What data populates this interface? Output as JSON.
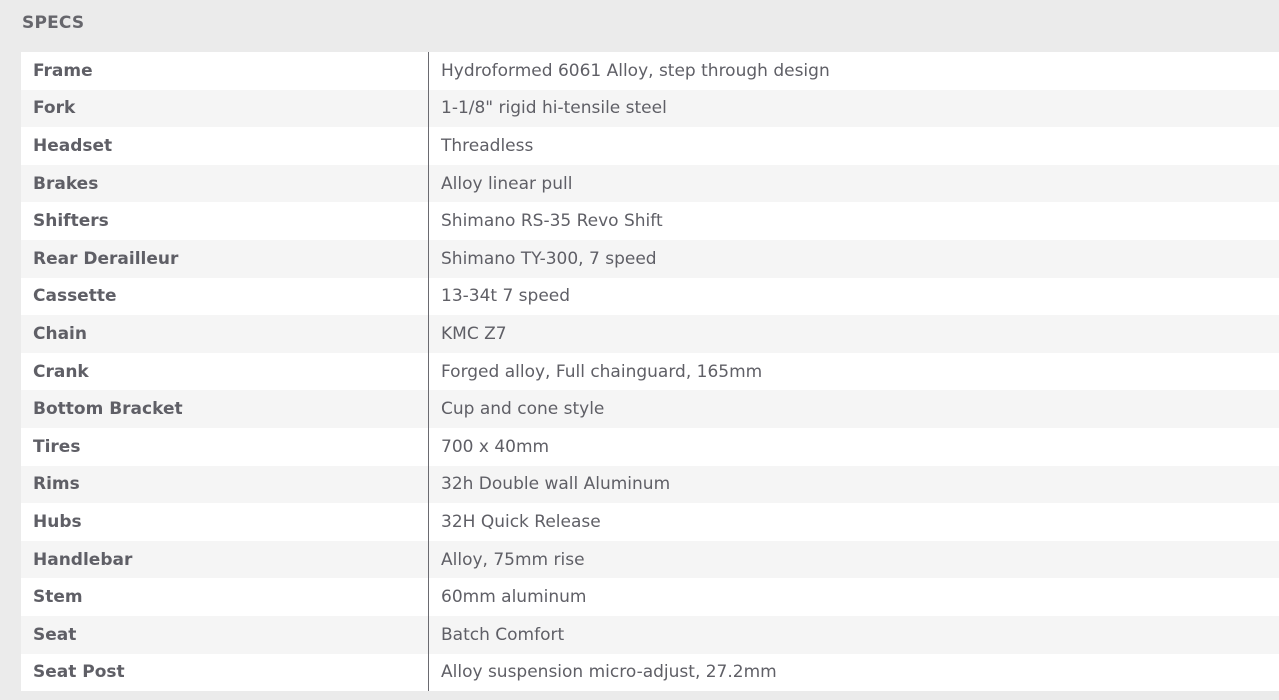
{
  "section_title": "SPECS",
  "specs": [
    {
      "label": "Frame",
      "value": "Hydroformed 6061 Alloy, step through design"
    },
    {
      "label": "Fork",
      "value": "1-1/8\" rigid hi-tensile steel"
    },
    {
      "label": "Headset",
      "value": "Threadless"
    },
    {
      "label": "Brakes",
      "value": "Alloy linear pull"
    },
    {
      "label": "Shifters",
      "value": "Shimano RS-35 Revo Shift"
    },
    {
      "label": "Rear Derailleur",
      "value": "Shimano TY-300, 7 speed"
    },
    {
      "label": "Cassette",
      "value": "13-34t 7 speed"
    },
    {
      "label": "Chain",
      "value": "KMC Z7"
    },
    {
      "label": "Crank",
      "value": "Forged alloy, Full chainguard, 165mm"
    },
    {
      "label": "Bottom Bracket",
      "value": "Cup and cone style"
    },
    {
      "label": "Tires",
      "value": "700 x 40mm"
    },
    {
      "label": "Rims",
      "value": "32h Double wall Aluminum"
    },
    {
      "label": "Hubs",
      "value": "32H Quick Release"
    },
    {
      "label": "Handlebar",
      "value": "Alloy, 75mm rise"
    },
    {
      "label": "Stem",
      "value": "60mm aluminum"
    },
    {
      "label": "Seat",
      "value": "Batch Comfort"
    },
    {
      "label": "Seat Post",
      "value": "Alloy suspension micro-adjust, 27.2mm"
    }
  ]
}
